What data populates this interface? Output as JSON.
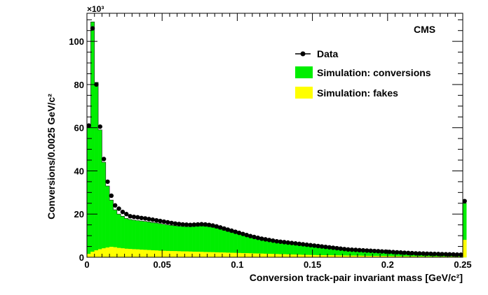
{
  "chart_data": {
    "type": "bar",
    "title": "",
    "experiment_label": "CMS",
    "xlabel": "Conversion track-pair invariant mass [GeV/c²]",
    "ylabel": "Conversions/0.0025 GeV/c²",
    "y_multiplier_label": "×10³",
    "xlim": [
      0,
      0.25
    ],
    "ylim": [
      0,
      113
    ],
    "x_ticks": [
      0,
      0.05,
      0.1,
      0.15,
      0.2,
      0.25
    ],
    "x_tick_labels": [
      "0",
      "0.05",
      "0.1",
      "0.15",
      "0.2",
      "0.25"
    ],
    "y_ticks": [
      0,
      20,
      40,
      60,
      80,
      100
    ],
    "y_tick_labels": [
      "0",
      "20",
      "40",
      "60",
      "80",
      "100"
    ],
    "bin_width": 0.0025,
    "grid": false,
    "legend_position": "top-right",
    "colors": {
      "conversions": "#00ee00",
      "fakes": "#ffff00",
      "data": "#000000"
    },
    "legend": {
      "data": "Data",
      "conversions": "Simulation: conversions",
      "fakes": "Simulation: fakes"
    },
    "series": [
      {
        "name": "Data",
        "values": [
          61,
          106,
          80,
          60.5,
          45.5,
          35,
          28.5,
          24,
          22.5,
          21,
          20,
          19,
          18.7,
          18.5,
          18.2,
          18,
          17.7,
          17.4,
          17.1,
          16.8,
          16.5,
          16.2,
          15.9,
          15.6,
          15.4,
          15.2,
          15.1,
          15.0,
          15.1,
          15.2,
          15.3,
          15.2,
          15.0,
          14.7,
          14.3,
          13.8,
          13.3,
          12.8,
          12.3,
          11.8,
          11.3,
          10.8,
          10.3,
          9.8,
          9.4,
          9.0,
          8.6,
          8.3,
          8.0,
          7.7,
          7.4,
          7.2,
          7.0,
          6.8,
          6.6,
          6.4,
          6.2,
          6.0,
          5.8,
          5.6,
          5.4,
          5.2,
          5.0,
          4.8,
          4.6,
          4.4,
          4.2,
          4.0,
          3.8,
          3.6,
          3.5,
          3.4,
          3.3,
          3.2,
          3.1,
          3.0,
          2.9,
          2.8,
          2.7,
          2.6,
          2.5,
          2.4,
          2.3,
          2.2,
          2.1,
          2.0,
          1.9,
          1.8,
          1.75,
          1.7,
          1.65,
          1.6,
          1.55,
          1.5,
          1.45,
          1.4,
          1.35,
          1.3,
          1.25,
          1.2,
          26
        ]
      },
      {
        "name": "Simulation: conversions",
        "values": [
          60,
          109,
          81,
          59,
          44,
          33,
          26.5,
          22,
          20,
          19,
          18,
          17.5,
          17.2,
          17,
          16.8,
          16.6,
          16.4,
          16.1,
          15.9,
          15.6,
          15.3,
          15.0,
          14.8,
          14.6,
          14.4,
          14.3,
          14.2,
          14.2,
          14.3,
          14.4,
          14.5,
          14.4,
          14.2,
          13.9,
          13.5,
          13.0,
          12.5,
          12.0,
          11.6,
          11.2,
          10.8,
          10.3,
          9.8,
          9.4,
          9.0,
          8.6,
          8.2,
          7.9,
          7.6,
          7.3,
          7.1,
          6.9,
          6.7,
          6.5,
          6.3,
          6.1,
          5.9,
          5.7,
          5.5,
          5.3,
          5.1,
          4.9,
          4.7,
          4.5,
          4.3,
          4.1,
          3.9,
          3.7,
          3.6,
          3.4,
          3.3,
          3.2,
          3.1,
          3.0,
          2.9,
          2.8,
          2.7,
          2.6,
          2.5,
          2.4,
          2.3,
          2.2,
          2.1,
          2.0,
          1.9,
          1.8,
          1.75,
          1.7,
          1.65,
          1.6,
          1.55,
          1.5,
          1.45,
          1.4,
          1.35,
          1.3,
          1.25,
          1.2,
          1.15,
          1.1,
          25
        ]
      },
      {
        "name": "Simulation: fakes",
        "values": [
          1.5,
          2.5,
          3.2,
          3.7,
          4.1,
          4.5,
          4.8,
          4.6,
          4.3,
          4.1,
          3.9,
          3.8,
          3.7,
          3.6,
          3.5,
          3.4,
          3.3,
          3.2,
          3.1,
          3.0,
          2.95,
          2.9,
          2.85,
          2.8,
          2.75,
          2.7,
          2.65,
          2.6,
          2.55,
          2.5,
          2.45,
          2.4,
          2.35,
          2.3,
          2.25,
          2.2,
          2.15,
          2.1,
          2.05,
          2.0,
          1.95,
          1.9,
          1.85,
          1.8,
          1.75,
          1.7,
          1.65,
          1.6,
          1.55,
          1.5,
          1.45,
          1.4,
          1.35,
          1.3,
          1.25,
          1.2,
          1.15,
          1.1,
          1.05,
          1.0,
          0.98,
          0.95,
          0.92,
          0.9,
          0.88,
          0.85,
          0.82,
          0.8,
          0.78,
          0.75,
          0.72,
          0.7,
          0.68,
          0.65,
          0.62,
          0.6,
          0.58,
          0.56,
          0.54,
          0.52,
          0.5,
          0.48,
          0.46,
          0.44,
          0.42,
          0.4,
          0.38,
          0.36,
          0.35,
          0.34,
          0.33,
          0.32,
          0.31,
          0.3,
          0.29,
          0.28,
          0.27,
          0.26,
          0.25,
          0.24,
          8
        ]
      }
    ]
  }
}
